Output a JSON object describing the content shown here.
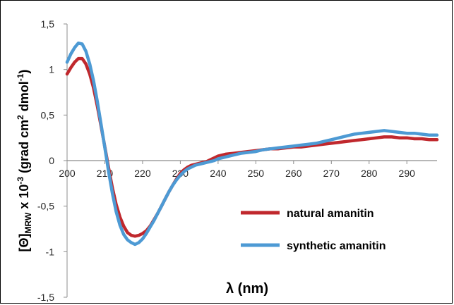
{
  "chart_data": {
    "type": "line",
    "title": "",
    "xlabel": "λ (nm)",
    "ylabel_parts": [
      "[Θ]",
      "MRW",
      " x 10",
      "-3",
      " (grad cm",
      "2",
      " dmol",
      "-1",
      ")"
    ],
    "xlim": [
      200,
      298
    ],
    "ylim": [
      -1.5,
      1.5
    ],
    "x_ticks": [
      200,
      210,
      220,
      230,
      240,
      250,
      260,
      270,
      280,
      290
    ],
    "x_tick_labels": [
      "200",
      "210",
      "220",
      "230",
      "240",
      "250",
      "260",
      "270",
      "280",
      "290"
    ],
    "y_ticks": [
      1.5,
      1,
      0.5,
      0,
      -0.5,
      -1,
      -1.5
    ],
    "y_tick_labels": [
      "1,5",
      "1",
      "0,5",
      "0",
      "-0,5",
      "-1",
      "-1,5"
    ],
    "grid": false,
    "legend_position": "lower-right",
    "series": [
      {
        "name": "natural amanitin",
        "color": "#c0282d",
        "x": [
          200,
          201,
          202,
          203,
          204,
          205,
          206,
          207,
          208,
          209,
          210,
          211,
          212,
          213,
          214,
          215,
          216,
          217,
          218,
          219,
          220,
          221,
          222,
          223,
          224,
          225,
          226,
          227,
          228,
          229,
          230,
          231,
          232,
          233,
          234,
          235,
          236,
          237,
          238,
          239,
          240,
          242,
          244,
          246,
          248,
          250,
          252,
          254,
          256,
          258,
          260,
          262,
          264,
          266,
          268,
          270,
          272,
          274,
          276,
          278,
          280,
          282,
          284,
          286,
          288,
          290,
          292,
          294,
          296,
          298
        ],
        "y": [
          0.95,
          1.02,
          1.08,
          1.12,
          1.12,
          1.06,
          0.95,
          0.8,
          0.6,
          0.38,
          0.15,
          -0.08,
          -0.3,
          -0.48,
          -0.62,
          -0.72,
          -0.79,
          -0.82,
          -0.83,
          -0.82,
          -0.8,
          -0.77,
          -0.72,
          -0.65,
          -0.58,
          -0.5,
          -0.42,
          -0.34,
          -0.27,
          -0.2,
          -0.14,
          -0.1,
          -0.07,
          -0.05,
          -0.04,
          -0.03,
          -0.02,
          -0.01,
          0.01,
          0.03,
          0.05,
          0.07,
          0.08,
          0.09,
          0.1,
          0.11,
          0.12,
          0.13,
          0.13,
          0.14,
          0.15,
          0.15,
          0.16,
          0.17,
          0.18,
          0.19,
          0.2,
          0.21,
          0.22,
          0.23,
          0.24,
          0.25,
          0.26,
          0.26,
          0.25,
          0.25,
          0.24,
          0.24,
          0.23,
          0.23
        ]
      },
      {
        "name": "synthetic amanitin",
        "color": "#4d9ad4",
        "x": [
          200,
          201,
          202,
          203,
          204,
          205,
          206,
          207,
          208,
          209,
          210,
          211,
          212,
          213,
          214,
          215,
          216,
          217,
          218,
          219,
          220,
          221,
          222,
          223,
          224,
          225,
          226,
          227,
          228,
          229,
          230,
          231,
          232,
          233,
          234,
          235,
          236,
          237,
          238,
          239,
          240,
          242,
          244,
          246,
          248,
          250,
          252,
          254,
          256,
          258,
          260,
          262,
          264,
          266,
          268,
          270,
          272,
          274,
          276,
          278,
          280,
          282,
          284,
          286,
          288,
          290,
          292,
          294,
          296,
          298
        ],
        "y": [
          1.08,
          1.17,
          1.24,
          1.29,
          1.28,
          1.2,
          1.06,
          0.88,
          0.65,
          0.4,
          0.14,
          -0.12,
          -0.36,
          -0.56,
          -0.71,
          -0.81,
          -0.87,
          -0.9,
          -0.92,
          -0.9,
          -0.86,
          -0.8,
          -0.73,
          -0.66,
          -0.58,
          -0.5,
          -0.42,
          -0.34,
          -0.27,
          -0.21,
          -0.16,
          -0.12,
          -0.09,
          -0.07,
          -0.05,
          -0.04,
          -0.03,
          -0.02,
          -0.01,
          0.0,
          0.02,
          0.04,
          0.06,
          0.08,
          0.09,
          0.1,
          0.12,
          0.13,
          0.14,
          0.15,
          0.16,
          0.17,
          0.18,
          0.19,
          0.21,
          0.23,
          0.25,
          0.27,
          0.29,
          0.3,
          0.31,
          0.32,
          0.33,
          0.32,
          0.31,
          0.3,
          0.3,
          0.29,
          0.28,
          0.28
        ]
      }
    ]
  }
}
